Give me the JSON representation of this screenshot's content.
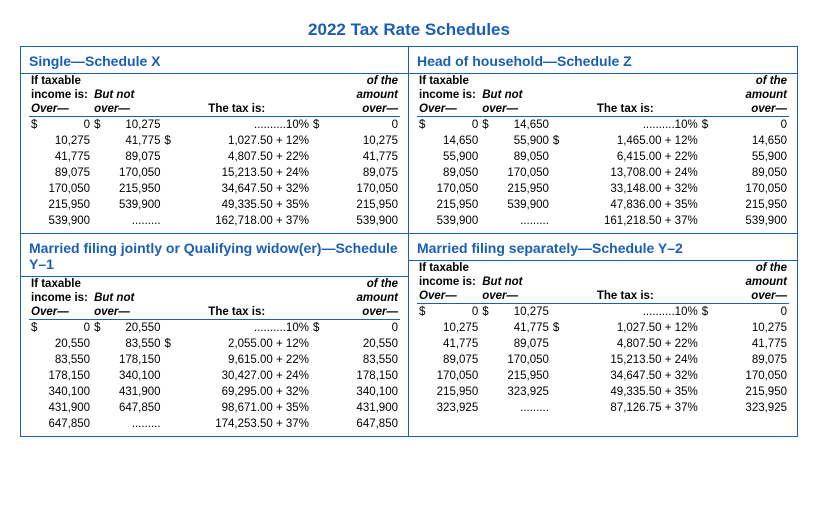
{
  "title": "2022 Tax Rate Schedules",
  "headers": {
    "line1_left": "If taxable",
    "line1_right": "of the",
    "line2_income": "income is:",
    "line2_butnot": "But not",
    "line2_amount": "amount",
    "line3_over": "Over—",
    "line3_over2": "over—",
    "line3_tax": "The tax is:",
    "line3_over3": "over—"
  },
  "schedules": [
    {
      "title": "Single—Schedule X",
      "rows": [
        {
          "o": "0",
          "od": true,
          "n": "10,275",
          "nd": true,
          "t": "..........10%",
          "a": "0",
          "ad": true
        },
        {
          "o": "10,275",
          "n": "41,775",
          "t": "1,027.50 + 12%",
          "td": true,
          "a": "10,275"
        },
        {
          "o": "41,775",
          "n": "89,075",
          "t": "4,807.50 + 22%",
          "a": "41,775"
        },
        {
          "o": "89,075",
          "n": "170,050",
          "t": "15,213.50 + 24%",
          "a": "89,075"
        },
        {
          "o": "170,050",
          "n": "215,950",
          "t": "34,647.50 + 32%",
          "a": "170,050"
        },
        {
          "o": "215,950",
          "n": "539,900",
          "t": "49,335.50 + 35%",
          "a": "215,950"
        },
        {
          "o": "539,900",
          "n": ".........",
          "t": "162,718.00 + 37%",
          "a": "539,900"
        }
      ]
    },
    {
      "title": "Head of household—Schedule Z",
      "rows": [
        {
          "o": "0",
          "od": true,
          "n": "14,650",
          "nd": true,
          "t": "..........10%",
          "a": "0",
          "ad": true
        },
        {
          "o": "14,650",
          "n": "55,900",
          "t": "1,465.00 + 12%",
          "td": true,
          "a": "14,650"
        },
        {
          "o": "55,900",
          "n": "89,050",
          "t": "6,415.00 + 22%",
          "a": "55,900"
        },
        {
          "o": "89,050",
          "n": "170,050",
          "t": "13,708.00 + 24%",
          "a": "89,050"
        },
        {
          "o": "170,050",
          "n": "215,950",
          "t": "33,148.00 + 32%",
          "a": "170,050"
        },
        {
          "o": "215,950",
          "n": "539,900",
          "t": "47,836.00 + 35%",
          "a": "215,950"
        },
        {
          "o": "539,900",
          "n": ".........",
          "t": "161,218.50 + 37%",
          "a": "539,900"
        }
      ]
    },
    {
      "title": "Married filing jointly or Qualifying widow(er)—Schedule Y–1",
      "rows": [
        {
          "o": "0",
          "od": true,
          "n": "20,550",
          "nd": true,
          "t": "..........10%",
          "a": "0",
          "ad": true
        },
        {
          "o": "20,550",
          "n": "83,550",
          "t": "2,055.00 + 12%",
          "td": true,
          "a": "20,550"
        },
        {
          "o": "83,550",
          "n": "178,150",
          "t": "9,615.00 + 22%",
          "a": "83,550"
        },
        {
          "o": "178,150",
          "n": "340,100",
          "t": "30,427.00 + 24%",
          "a": "178,150"
        },
        {
          "o": "340,100",
          "n": "431,900",
          "t": "69,295.00 + 32%",
          "a": "340,100"
        },
        {
          "o": "431,900",
          "n": "647,850",
          "t": "98,671.00 + 35%",
          "a": "431,900"
        },
        {
          "o": "647,850",
          "n": ".........",
          "t": "174,253.50 + 37%",
          "a": "647,850"
        }
      ]
    },
    {
      "title": "Married filing separately—Schedule Y–2",
      "rows": [
        {
          "o": "0",
          "od": true,
          "n": "10,275",
          "nd": true,
          "t": "..........10%",
          "a": "0",
          "ad": true
        },
        {
          "o": "10,275",
          "n": "41,775",
          "t": "1,027.50 + 12%",
          "td": true,
          "a": "10,275"
        },
        {
          "o": "41,775",
          "n": "89,075",
          "t": "4,807.50 + 22%",
          "a": "41,775"
        },
        {
          "o": "89,075",
          "n": "170,050",
          "t": "15,213.50 + 24%",
          "a": "89,075"
        },
        {
          "o": "170,050",
          "n": "215,950",
          "t": "34,647.50 + 32%",
          "a": "170,050"
        },
        {
          "o": "215,950",
          "n": "323,925",
          "t": "49,335.50 + 35%",
          "a": "215,950"
        },
        {
          "o": "323,925",
          "n": ".........",
          "t": "87,126.75 + 37%",
          "a": "323,925"
        }
      ]
    }
  ],
  "colors": {
    "primary": "#1a5fb4",
    "text": "#000000",
    "background": "#ffffff"
  }
}
